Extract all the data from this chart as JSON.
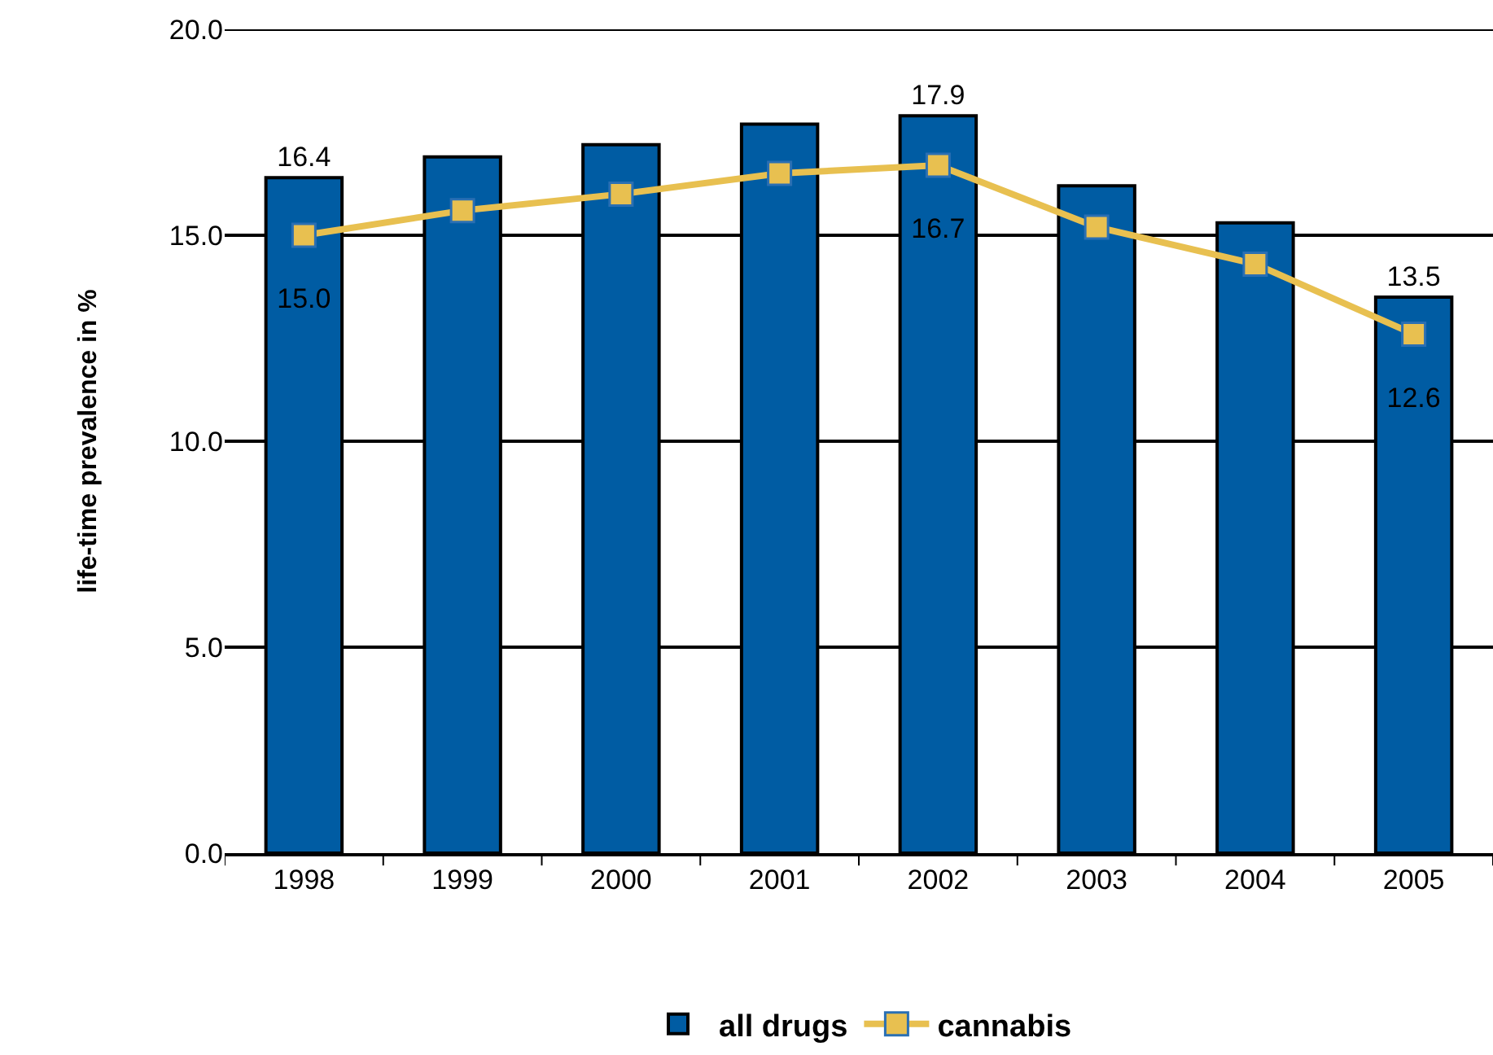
{
  "chart_data": {
    "type": "bar",
    "ylabel": "life-time prevalence in %",
    "categories": [
      "1998",
      "1999",
      "2000",
      "2001",
      "2002",
      "2003",
      "2004",
      "2005"
    ],
    "series": [
      {
        "name": "all drugs",
        "color": "#005ca3",
        "values": [
          16.4,
          16.9,
          17.2,
          17.7,
          17.9,
          16.2,
          15.3,
          13.5
        ],
        "value_labels": [
          "16.4",
          null,
          null,
          null,
          "17.9",
          null,
          null,
          "13.5"
        ]
      },
      {
        "name": "cannabis",
        "type": "line",
        "color": "#e8c050",
        "values": [
          15.0,
          15.6,
          16.0,
          16.5,
          16.7,
          15.2,
          14.3,
          12.6
        ],
        "value_labels": [
          "15.0",
          null,
          null,
          null,
          "16.7",
          null,
          null,
          "12.6"
        ]
      }
    ],
    "ylim": [
      0,
      20
    ],
    "yticks": [
      {
        "value": 0,
        "label": "0.0"
      },
      {
        "value": 5,
        "label": "5.0"
      },
      {
        "value": 10,
        "label": "10.0"
      },
      {
        "value": 15,
        "label": "15.0"
      },
      {
        "value": 20,
        "label": "20.0"
      }
    ],
    "grid": "y",
    "legend": "bottom",
    "marker": "square",
    "line_style": "solid"
  }
}
